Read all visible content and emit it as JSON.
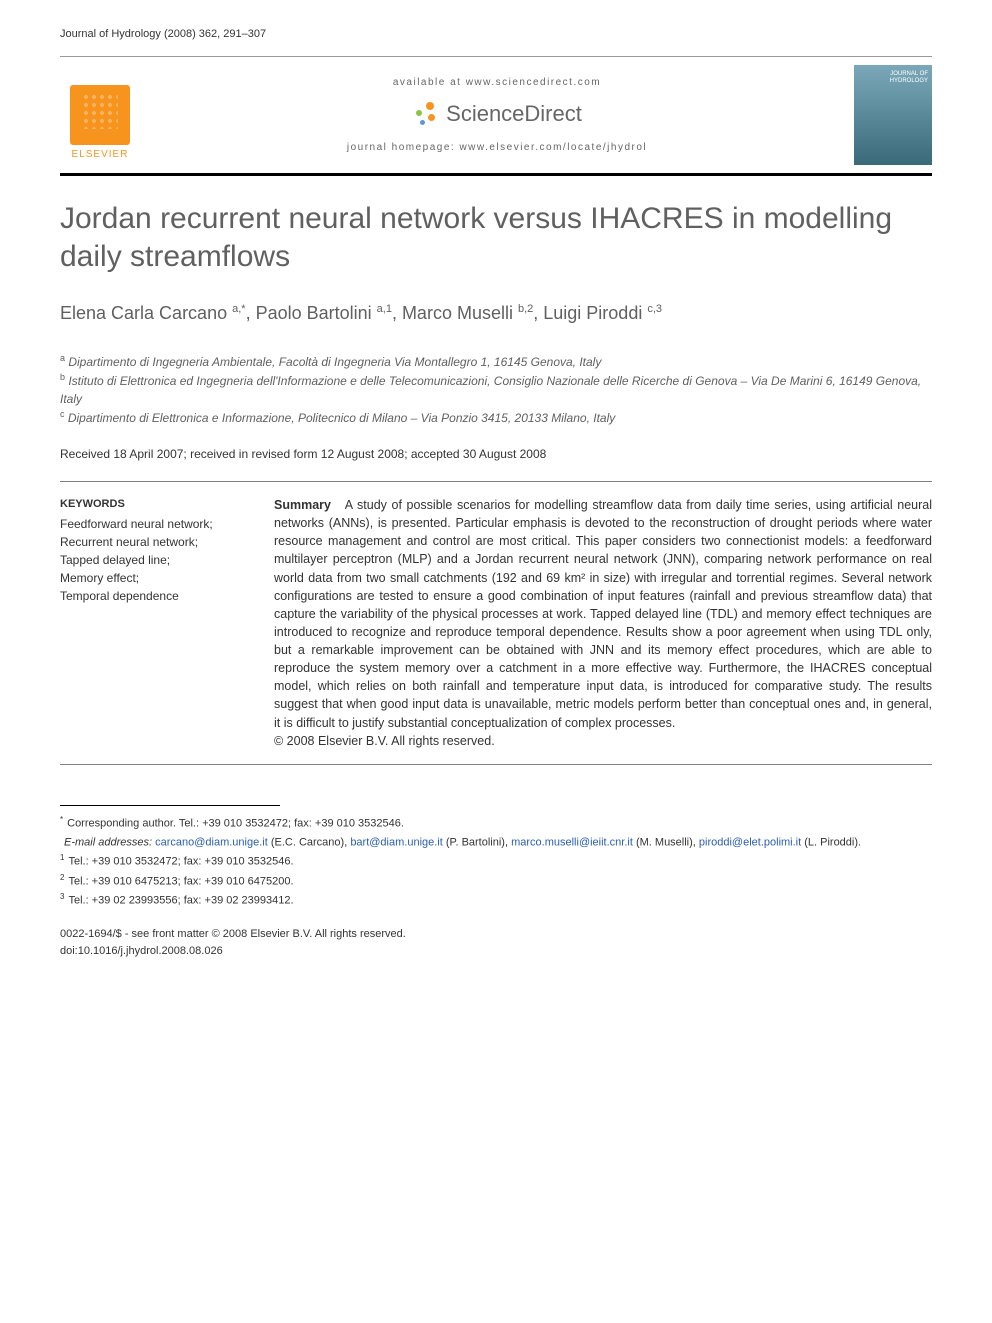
{
  "header": {
    "journal_ref": "Journal of Hydrology (2008) 362, 291–307"
  },
  "banner": {
    "elsevier_label": "ELSEVIER",
    "available_at": "available at www.sciencedirect.com",
    "sd_brand": "ScienceDirect",
    "homepage": "journal homepage: www.elsevier.com/locate/jhydrol",
    "cover_title": "JOURNAL OF\nHYDROLOGY",
    "colors": {
      "elsevier_orange": "#f7941e",
      "sd_orange": "#f7941e",
      "sd_green": "#8bc53f",
      "sd_blue": "#5b9bd5",
      "cover_bg": "#5a8a9a"
    }
  },
  "article": {
    "title": "Jordan recurrent neural network versus IHACRES in modelling daily streamflows",
    "authors_html": "Elena Carla Carcano <sup>a,*</sup>, Paolo Bartolini <sup>a,1</sup>, Marco Muselli <sup>b,2</sup>, Luigi Piroddi <sup>c,3</sup>",
    "affiliations": [
      {
        "sup": "a",
        "text": "Dipartimento di Ingegneria Ambientale, Facoltà di Ingegneria Via Montallegro 1, 16145 Genova, Italy"
      },
      {
        "sup": "b",
        "text": "Istituto di Elettronica ed Ingegneria dell'Informazione e delle Telecomunicazioni, Consiglio Nazionale delle Ricerche di Genova – Via De Marini 6, 16149 Genova, Italy"
      },
      {
        "sup": "c",
        "text": "Dipartimento di Elettronica e Informazione, Politecnico di Milano – Via Ponzio 3415, 20133 Milano, Italy"
      }
    ],
    "dates": "Received 18 April 2007; received in revised form 12 August 2008; accepted 30 August 2008",
    "keywords_heading": "KEYWORDS",
    "keywords": "Feedforward neural network;\nRecurrent neural network;\nTapped delayed line;\nMemory effect;\nTemporal dependence",
    "summary_label": "Summary",
    "summary": "A study of possible scenarios for modelling streamflow data from daily time series, using artificial neural networks (ANNs), is presented. Particular emphasis is devoted to the reconstruction of drought periods where water resource management and control are most critical. This paper considers two connectionist models: a feedforward multilayer perceptron (MLP) and a Jordan recurrent neural network (JNN), comparing network performance on real world data from two small catchments (192 and 69 km² in size) with irregular and torrential regimes. Several network configurations are tested to ensure a good combination of input features (rainfall and previous streamflow data) that capture the variability of the physical processes at work. Tapped delayed line (TDL) and memory effect techniques are introduced to recognize and reproduce temporal dependence. Results show a poor agreement when using TDL only, but a remarkable improvement can be obtained with JNN and its memory effect procedures, which are able to reproduce the system memory over a catchment in a more effective way. Furthermore, the IHACRES conceptual model, which relies on both rainfall and temperature input data, is introduced for comparative study. The results suggest that when good input data is unavailable, metric models perform better than conceptual ones and, in general, it is difficult to justify substantial conceptualization of complex processes.",
    "summary_copyright": "© 2008 Elsevier B.V. All rights reserved."
  },
  "footnotes": {
    "corresponding": "Corresponding author. Tel.: +39 010 3532472; fax: +39 010 3532546.",
    "emails_label": "E-mail addresses:",
    "emails": [
      {
        "addr": "carcano@diam.unige.it",
        "who": "(E.C. Carcano)"
      },
      {
        "addr": "bart@diam.unige.it",
        "who": "(P. Bartolini)"
      },
      {
        "addr": "marco.muselli@ieiit.cnr.it",
        "who": "(M. Muselli)"
      },
      {
        "addr": "piroddi@elet.polimi.it",
        "who": "(L. Piroddi)."
      }
    ],
    "tels": [
      {
        "sup": "1",
        "text": "Tel.: +39 010 3532472; fax: +39 010 3532546."
      },
      {
        "sup": "2",
        "text": "Tel.: +39 010 6475213; fax: +39 010 6475200."
      },
      {
        "sup": "3",
        "text": "Tel.: +39 02 23993556; fax: +39 02 23993412."
      }
    ]
  },
  "copyright": {
    "line1": "0022-1694/$ - see front matter © 2008 Elsevier B.V. All rights reserved.",
    "line2": "doi:10.1016/j.jhydrol.2008.08.026"
  }
}
